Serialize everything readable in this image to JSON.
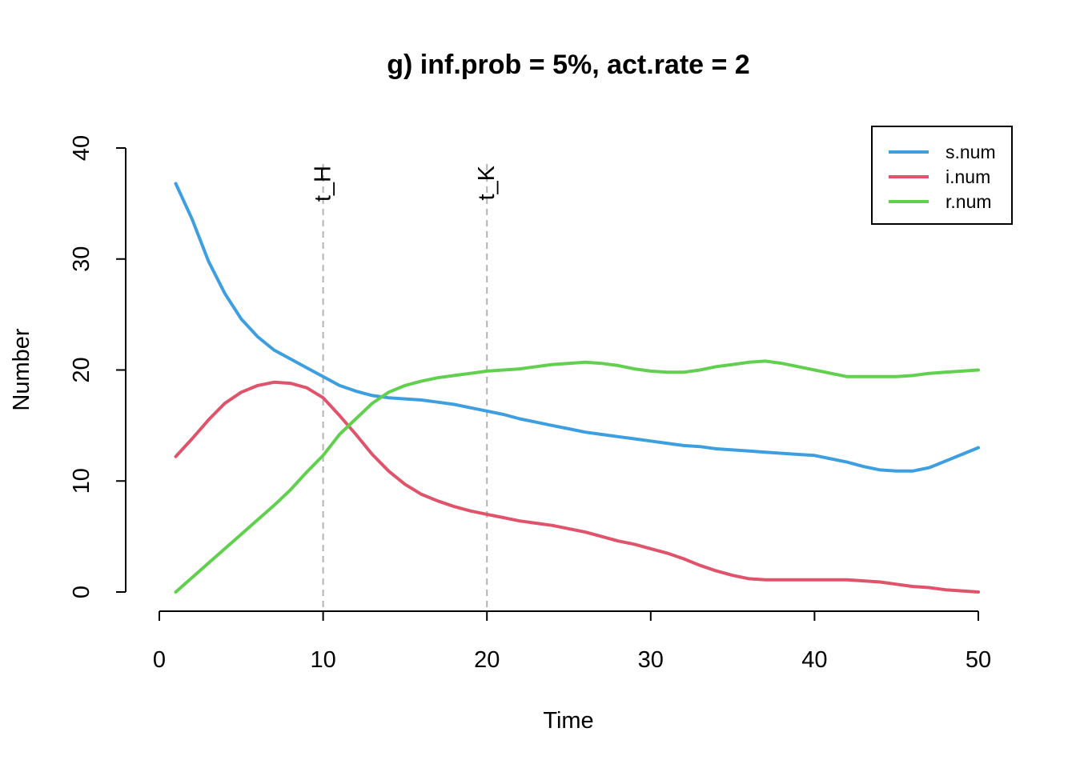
{
  "chart_data": {
    "type": "line",
    "title": "g) inf.prob = 5%, act.rate = 2",
    "xlabel": "Time",
    "ylabel": "Number",
    "xlim": [
      0,
      50
    ],
    "ylim": [
      0,
      40
    ],
    "xticks": [
      0,
      10,
      20,
      30,
      40,
      50
    ],
    "yticks": [
      0,
      10,
      20,
      30,
      40
    ],
    "grid": false,
    "legend_position": "top-right",
    "x": [
      1,
      2,
      3,
      4,
      5,
      6,
      7,
      8,
      9,
      10,
      11,
      12,
      13,
      14,
      15,
      16,
      17,
      18,
      19,
      20,
      21,
      22,
      23,
      24,
      25,
      26,
      27,
      28,
      29,
      30,
      31,
      32,
      33,
      34,
      35,
      36,
      37,
      38,
      39,
      40,
      41,
      42,
      43,
      44,
      45,
      46,
      47,
      48,
      49,
      50
    ],
    "series": [
      {
        "name": "s.num",
        "color": "#3D9FE0",
        "values": [
          36.8,
          33.6,
          29.8,
          26.9,
          24.6,
          23.0,
          21.8,
          21.0,
          20.2,
          19.4,
          18.6,
          18.1,
          17.7,
          17.5,
          17.4,
          17.3,
          17.1,
          16.9,
          16.6,
          16.3,
          16.0,
          15.6,
          15.3,
          15.0,
          14.7,
          14.4,
          14.2,
          14.0,
          13.8,
          13.6,
          13.4,
          13.2,
          13.1,
          12.9,
          12.8,
          12.7,
          12.6,
          12.5,
          12.4,
          12.3,
          12.0,
          11.7,
          11.3,
          11.0,
          10.9,
          10.9,
          11.2,
          11.8,
          12.4,
          13.0
        ]
      },
      {
        "name": "i.num",
        "color": "#DF536B",
        "values": [
          12.2,
          13.8,
          15.5,
          17.0,
          18.0,
          18.6,
          18.9,
          18.8,
          18.4,
          17.5,
          15.9,
          14.2,
          12.4,
          10.9,
          9.7,
          8.8,
          8.2,
          7.7,
          7.3,
          7.0,
          6.7,
          6.4,
          6.2,
          6.0,
          5.7,
          5.4,
          5.0,
          4.6,
          4.3,
          3.9,
          3.5,
          3.0,
          2.4,
          1.9,
          1.5,
          1.2,
          1.1,
          1.1,
          1.1,
          1.1,
          1.1,
          1.1,
          1.0,
          0.9,
          0.7,
          0.5,
          0.4,
          0.2,
          0.1,
          0.0
        ]
      },
      {
        "name": "r.num",
        "color": "#61D04F",
        "values": [
          0.0,
          1.3,
          2.6,
          3.9,
          5.2,
          6.5,
          7.8,
          9.2,
          10.8,
          12.3,
          14.2,
          15.6,
          17.0,
          18.0,
          18.6,
          19.0,
          19.3,
          19.5,
          19.7,
          19.9,
          20.0,
          20.1,
          20.3,
          20.5,
          20.6,
          20.7,
          20.6,
          20.4,
          20.1,
          19.9,
          19.8,
          19.8,
          20.0,
          20.3,
          20.5,
          20.7,
          20.8,
          20.6,
          20.3,
          20.0,
          19.7,
          19.4,
          19.4,
          19.4,
          19.4,
          19.5,
          19.7,
          19.8,
          19.9,
          20.0
        ]
      }
    ],
    "vlines": [
      {
        "x": 10,
        "label": "t_H",
        "color": "#b3b3b3"
      },
      {
        "x": 20,
        "label": "t_K",
        "color": "#b3b3b3"
      }
    ]
  }
}
